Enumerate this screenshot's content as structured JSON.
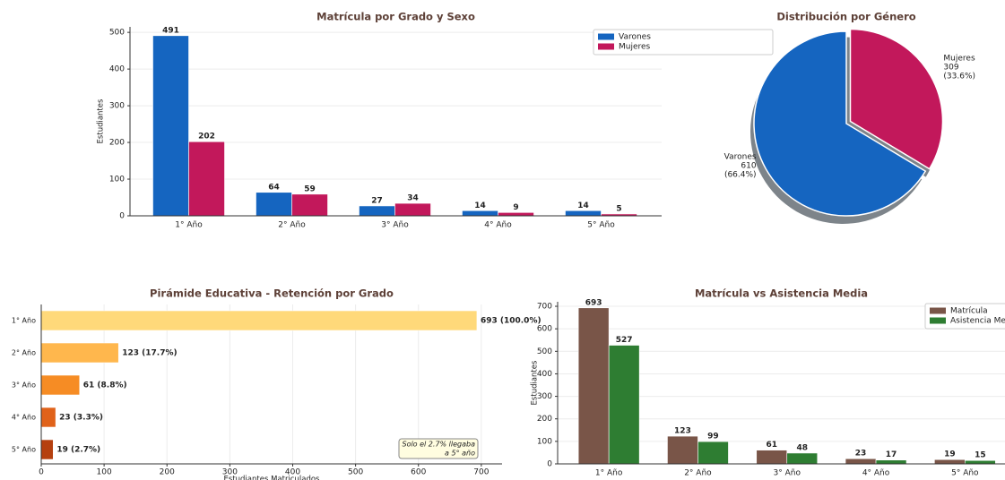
{
  "chart_data": [
    {
      "type": "bar",
      "title": "Matrícula por Grado y Sexo",
      "ylabel": "Estudiantes",
      "categories": [
        "1° Año",
        "2° Año",
        "3° Año",
        "4° Año",
        "5° Año"
      ],
      "series": [
        {
          "name": "Varones",
          "color": "#1565c0",
          "values": [
            491,
            64,
            27,
            14,
            14
          ]
        },
        {
          "name": "Mujeres",
          "color": "#c2185b",
          "values": [
            202,
            59,
            34,
            9,
            5
          ]
        }
      ],
      "ylim": [
        0,
        515
      ],
      "yticks": [
        0,
        100,
        200,
        300,
        400,
        500
      ],
      "grid": true,
      "legend": "upper right"
    },
    {
      "type": "pie",
      "title": "Distribución por Género",
      "categories": [
        "Varones",
        "Mujeres"
      ],
      "values": [
        610,
        309
      ],
      "percent_labels": [
        "(66.4%)",
        "(33.6%)"
      ],
      "colors": [
        "#1565c0",
        "#c2185b"
      ],
      "explode": [
        0,
        0.05
      ],
      "shadow": true
    },
    {
      "type": "barh",
      "title": "Pirámide Educativa - Retención por Grado",
      "xlabel": "Estudiantes Matriculados",
      "categories": [
        "1° Año",
        "2° Año",
        "3° Año",
        "4° Año",
        "5° Año"
      ],
      "values": [
        693,
        123,
        61,
        23,
        19
      ],
      "value_labels": [
        "693 (100.0%)",
        "123 (17.7%)",
        "61 (8.8%)",
        "23 (3.3%)",
        "19 (2.7%)"
      ],
      "colors": [
        "#ffd97a",
        "#ffb74d",
        "#f68c24",
        "#e0621a",
        "#b5400f"
      ],
      "xlim": [
        0,
        733
      ],
      "xticks": [
        0,
        100,
        200,
        300,
        400,
        500,
        600,
        700
      ],
      "grid": true,
      "annotation": [
        "Solo el 2.7% llegaba",
        "a 5° año"
      ]
    },
    {
      "type": "bar",
      "title": "Matrícula vs Asistencia Media",
      "ylabel": "Estudiantes",
      "categories": [
        "1° Año",
        "2° Año",
        "3° Año",
        "4° Año",
        "5° Año"
      ],
      "series": [
        {
          "name": "Matrícula",
          "color": "#795548",
          "values": [
            693,
            123,
            61,
            23,
            19
          ]
        },
        {
          "name": "Asistencia Media",
          "color": "#2e7d32",
          "values": [
            527,
            99,
            48,
            17,
            15
          ]
        }
      ],
      "ylim": [
        0,
        720
      ],
      "yticks": [
        0,
        100,
        200,
        300,
        400,
        500,
        600,
        700
      ],
      "grid": true,
      "legend": "upper right"
    }
  ]
}
